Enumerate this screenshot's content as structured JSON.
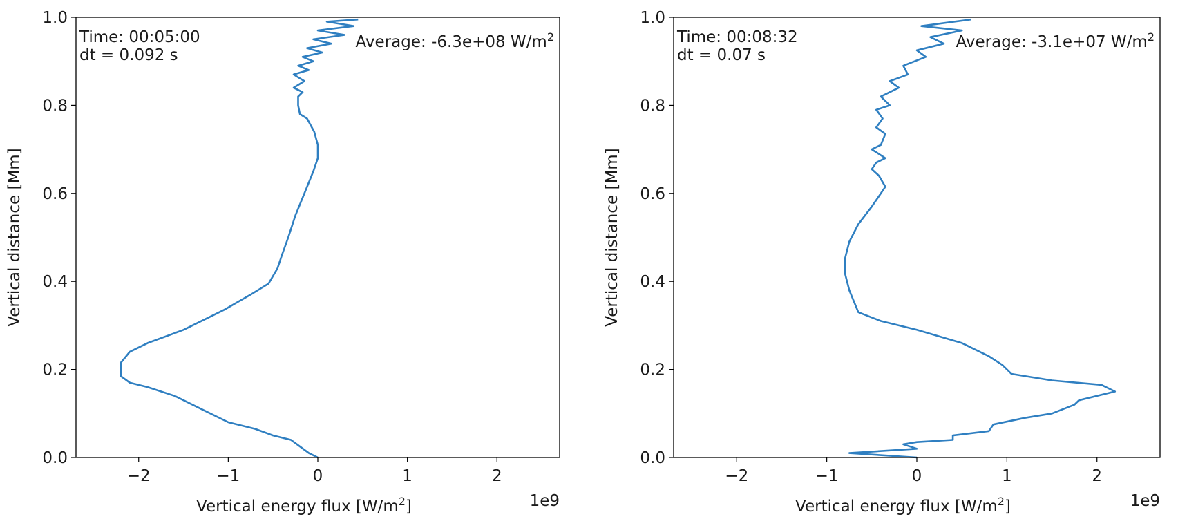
{
  "chart_data": [
    {
      "type": "line",
      "title": "",
      "xlabel": "Vertical energy flux [W/m",
      "xlabel_sup": "2",
      "xlabel_end": "]",
      "ylabel": "Vertical distance [Mm]",
      "offset_label": "1e9",
      "xlim": [
        -2.7,
        2.7
      ],
      "ylim": [
        0.0,
        1.0
      ],
      "x_ticks": [
        -2,
        -1,
        0,
        1,
        2
      ],
      "x_tick_labels": [
        "−2",
        "−1",
        "0",
        "1",
        "2"
      ],
      "y_ticks": [
        0.0,
        0.2,
        0.4,
        0.6,
        0.8,
        1.0
      ],
      "y_tick_labels": [
        "0.0",
        "0.2",
        "0.4",
        "0.6",
        "0.8",
        "1.0"
      ],
      "time_text": "Time: 00:05:00",
      "dt_text": "dt = 0.092 s",
      "average_text": "Average: -6.3e+08 W/m",
      "average_sup": "2",
      "line_color": "#2f7fc1",
      "series": [
        {
          "name": "flux",
          "x": [
            0.0,
            -0.1,
            -0.2,
            -0.3,
            -0.5,
            -0.7,
            -1.0,
            -1.3,
            -1.6,
            -1.9,
            -2.1,
            -2.2,
            -2.2,
            -2.1,
            -1.9,
            -1.5,
            -1.05,
            -0.75,
            -0.55,
            -0.45,
            -0.4,
            -0.33,
            -0.25,
            -0.15,
            -0.05,
            0.0,
            0.0,
            -0.04,
            -0.12,
            -0.2,
            -0.22,
            -0.22,
            -0.17,
            -0.27,
            -0.15,
            -0.27,
            -0.1,
            -0.22,
            -0.05,
            -0.17,
            0.05,
            -0.12,
            0.15,
            -0.05,
            0.3,
            0.0,
            0.4,
            0.1,
            0.45
          ],
          "y": [
            0.0,
            0.01,
            0.025,
            0.04,
            0.05,
            0.065,
            0.08,
            0.11,
            0.14,
            0.16,
            0.17,
            0.185,
            0.215,
            0.24,
            0.26,
            0.29,
            0.335,
            0.37,
            0.395,
            0.43,
            0.46,
            0.5,
            0.55,
            0.6,
            0.65,
            0.68,
            0.71,
            0.74,
            0.77,
            0.78,
            0.8,
            0.82,
            0.83,
            0.84,
            0.855,
            0.87,
            0.88,
            0.89,
            0.9,
            0.91,
            0.92,
            0.93,
            0.94,
            0.95,
            0.96,
            0.97,
            0.98,
            0.99,
            0.995
          ]
        }
      ]
    },
    {
      "type": "line",
      "title": "",
      "xlabel": "Vertical energy flux [W/m",
      "xlabel_sup": "2",
      "xlabel_end": "]",
      "ylabel": "Vertical distance [Mm]",
      "offset_label": "1e9",
      "xlim": [
        -2.7,
        2.7
      ],
      "ylim": [
        0.0,
        1.0
      ],
      "x_ticks": [
        -2,
        -1,
        0,
        1,
        2
      ],
      "x_tick_labels": [
        "−2",
        "−1",
        "0",
        "1",
        "2"
      ],
      "y_ticks": [
        0.0,
        0.2,
        0.4,
        0.6,
        0.8,
        1.0
      ],
      "y_tick_labels": [
        "0.0",
        "0.2",
        "0.4",
        "0.6",
        "0.8",
        "1.0"
      ],
      "time_text": "Time: 00:08:32",
      "dt_text": "dt = 0.07 s",
      "average_text": "Average: -3.1e+07 W/m",
      "average_sup": "2",
      "line_color": "#2f7fc1",
      "series": [
        {
          "name": "flux",
          "x": [
            0.0,
            -0.75,
            0.0,
            -0.15,
            0.0,
            0.4,
            0.4,
            0.8,
            0.85,
            1.2,
            1.5,
            1.75,
            1.8,
            2.2,
            2.05,
            1.5,
            1.05,
            0.95,
            0.8,
            0.5,
            0.0,
            -0.4,
            -0.65,
            -0.75,
            -0.8,
            -0.8,
            -0.75,
            -0.65,
            -0.5,
            -0.4,
            -0.35,
            -0.42,
            -0.5,
            -0.45,
            -0.35,
            -0.5,
            -0.4,
            -0.35,
            -0.45,
            -0.38,
            -0.45,
            -0.3,
            -0.4,
            -0.2,
            -0.3,
            -0.1,
            -0.15,
            0.1,
            0.0,
            0.3,
            0.15,
            0.5,
            0.05,
            0.6
          ],
          "y": [
            0.0,
            0.01,
            0.02,
            0.03,
            0.035,
            0.04,
            0.05,
            0.06,
            0.075,
            0.09,
            0.1,
            0.12,
            0.13,
            0.15,
            0.165,
            0.175,
            0.19,
            0.21,
            0.23,
            0.26,
            0.29,
            0.31,
            0.33,
            0.38,
            0.42,
            0.45,
            0.49,
            0.53,
            0.57,
            0.6,
            0.615,
            0.64,
            0.655,
            0.67,
            0.68,
            0.7,
            0.71,
            0.735,
            0.75,
            0.77,
            0.79,
            0.8,
            0.82,
            0.84,
            0.855,
            0.87,
            0.89,
            0.91,
            0.925,
            0.94,
            0.955,
            0.97,
            0.98,
            0.995
          ]
        }
      ]
    }
  ]
}
